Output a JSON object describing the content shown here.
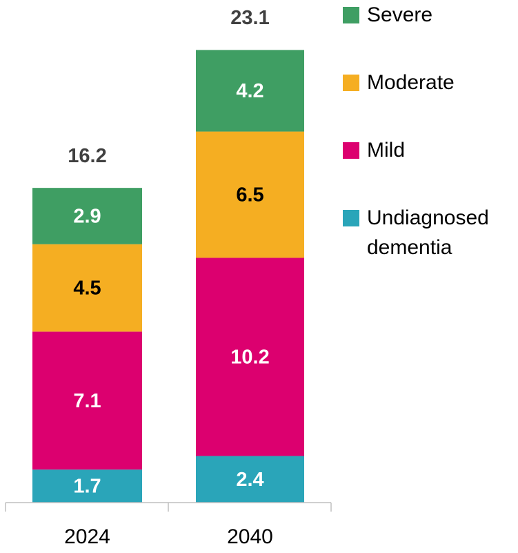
{
  "chart_data": {
    "type": "stacked_bar",
    "categories": [
      "2024",
      "2040"
    ],
    "series": [
      {
        "name": "Undiagnosed dementia",
        "color": "#2aa5b9",
        "label_color": "#ffffff",
        "values": [
          1.7,
          2.4
        ]
      },
      {
        "name": "Mild",
        "color": "#dc006f",
        "label_color": "#ffffff",
        "values": [
          7.1,
          10.2
        ]
      },
      {
        "name": "Moderate",
        "color": "#f5ae22",
        "label_color": "#000000",
        "values": [
          4.5,
          6.5
        ]
      },
      {
        "name": "Severe",
        "color": "#3f9e63",
        "label_color": "#ffffff",
        "values": [
          2.9,
          4.2
        ]
      }
    ],
    "totals": [
      16.2,
      23.1
    ],
    "legend": "right"
  }
}
